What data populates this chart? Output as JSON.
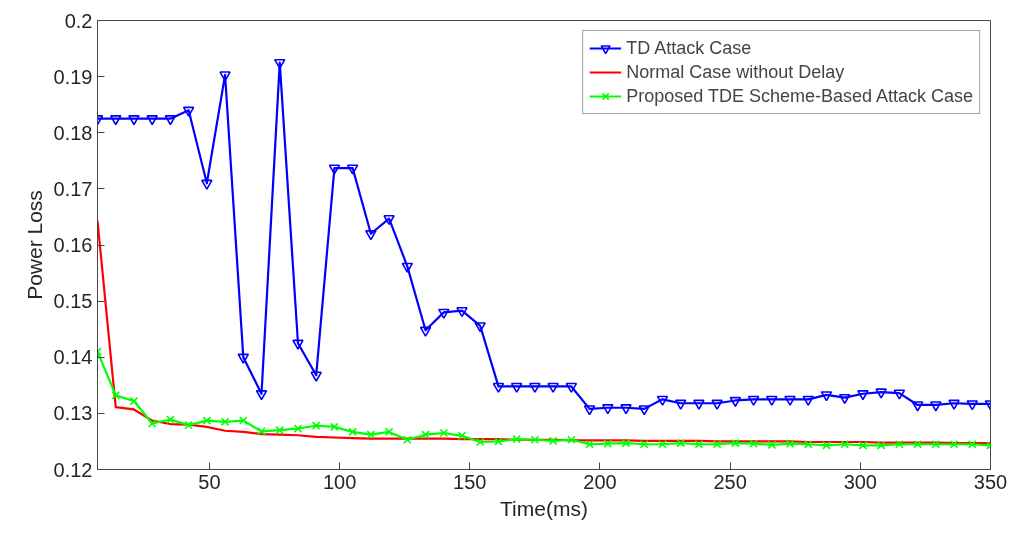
{
  "chart_data": {
    "type": "line",
    "xlabel": "Time(ms)",
    "ylabel": "Power Loss",
    "xlim": [
      7,
      350
    ],
    "xticks": [
      50,
      100,
      150,
      200,
      250,
      300,
      350
    ],
    "ylim": [
      0.12,
      0.2
    ],
    "yticks": [
      0.12,
      0.13,
      0.14,
      0.15,
      0.16,
      0.17,
      0.18,
      0.19,
      0.2
    ],
    "grid": false,
    "legend": "top right",
    "x": [
      7,
      14,
      21,
      28,
      35,
      42,
      49,
      56,
      63,
      70,
      77,
      84,
      91,
      98,
      105,
      112,
      119,
      126,
      133,
      140,
      147,
      154,
      161,
      168,
      175,
      182,
      189,
      196,
      203,
      210,
      217,
      224,
      231,
      238,
      245,
      252,
      259,
      266,
      273,
      280,
      287,
      294,
      301,
      308,
      315,
      322,
      329,
      336,
      343,
      350
    ],
    "series": [
      {
        "name": "TD Attack Case",
        "color": "#0000ff",
        "marker": "triangle",
        "values": [
          0.1825,
          0.1825,
          0.1825,
          0.1825,
          0.1825,
          0.184,
          0.171,
          0.1903,
          0.14,
          0.1335,
          0.1925,
          0.1425,
          0.1368,
          0.1737,
          0.1737,
          0.162,
          0.1647,
          0.1562,
          0.1448,
          0.148,
          0.1483,
          0.1456,
          0.1348,
          0.1348,
          0.1348,
          0.1348,
          0.1348,
          0.1308,
          0.131,
          0.131,
          0.1308,
          0.1325,
          0.1318,
          0.1318,
          0.1318,
          0.1323,
          0.1325,
          0.1325,
          0.1325,
          0.1325,
          0.1333,
          0.1328,
          0.1335,
          0.1338,
          0.1336,
          0.1315,
          0.1315,
          0.1318,
          0.1317,
          0.1317
        ]
      },
      {
        "name": "Normal Case without Delay",
        "color": "#ff0000",
        "marker": "none",
        "values": [
          0.1643,
          0.1311,
          0.1307,
          0.1287,
          0.1281,
          0.128,
          0.1276,
          0.1269,
          0.1267,
          0.1263,
          0.1262,
          0.1261,
          0.1258,
          0.1257,
          0.1256,
          0.1255,
          0.1255,
          0.1255,
          0.1255,
          0.1255,
          0.1254,
          0.1254,
          0.1254,
          0.1253,
          0.1253,
          0.1253,
          0.1252,
          0.1252,
          0.1252,
          0.1252,
          0.1251,
          0.1251,
          0.1251,
          0.1251,
          0.125,
          0.125,
          0.125,
          0.125,
          0.125,
          0.1249,
          0.1249,
          0.1249,
          0.1249,
          0.1248,
          0.1248,
          0.1248,
          0.1248,
          0.1247,
          0.1247,
          0.1247
        ]
      },
      {
        "name": "Proposed TDE Scheme-Based Attack Case",
        "color": "#00ff00",
        "marker": "cross",
        "values": [
          0.141,
          0.1332,
          0.1322,
          0.1282,
          0.1289,
          0.1279,
          0.1287,
          0.1285,
          0.1287,
          0.1268,
          0.127,
          0.1273,
          0.1278,
          0.1276,
          0.1267,
          0.1262,
          0.1267,
          0.1253,
          0.1262,
          0.1265,
          0.126,
          0.1249,
          0.125,
          0.1254,
          0.1253,
          0.1251,
          0.1253,
          0.1245,
          0.1246,
          0.1247,
          0.1245,
          0.1245,
          0.1247,
          0.1245,
          0.1245,
          0.1247,
          0.1246,
          0.1244,
          0.1246,
          0.1245,
          0.1243,
          0.1245,
          0.1243,
          0.1243,
          0.1245,
          0.1245,
          0.1245,
          0.1245,
          0.1245,
          0.1243
        ]
      }
    ]
  }
}
